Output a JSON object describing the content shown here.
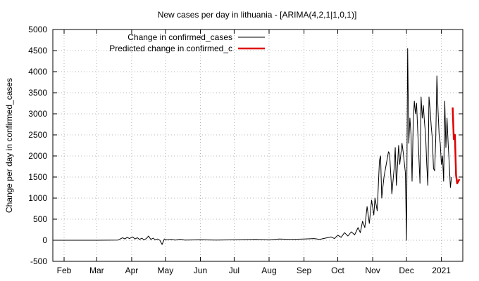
{
  "colors": {
    "observed": "#000000",
    "predicted": "#e00000",
    "grid": "#a0a0a0"
  },
  "chart_data": {
    "type": "line",
    "title": "New cases per day in lithuania -  [ARIMA(4,2,1|1,0,1)]",
    "xlabel": "",
    "ylabel": "Change per day in confirmed_cases",
    "ylim": [
      -500,
      5000
    ],
    "yticks": [
      -500,
      0,
      500,
      1000,
      1500,
      2000,
      2500,
      3000,
      3500,
      4000,
      4500,
      5000
    ],
    "xticks": [
      {
        "label": "Feb",
        "date": "2020-02-01"
      },
      {
        "label": "Mar",
        "date": "2020-03-01"
      },
      {
        "label": "Apr",
        "date": "2020-04-01"
      },
      {
        "label": "May",
        "date": "2020-05-01"
      },
      {
        "label": "Jun",
        "date": "2020-06-01"
      },
      {
        "label": "Jul",
        "date": "2020-07-01"
      },
      {
        "label": "Aug",
        "date": "2020-08-01"
      },
      {
        "label": "Sep",
        "date": "2020-09-01"
      },
      {
        "label": "Oct",
        "date": "2020-10-01"
      },
      {
        "label": "Nov",
        "date": "2020-11-01"
      },
      {
        "label": "Dec",
        "date": "2020-12-01"
      },
      {
        "label": "2021",
        "date": "2021-01-01"
      }
    ],
    "xlim": [
      "2020-01-22",
      "2021-01-20"
    ],
    "grid": true,
    "legend_position": "top-left",
    "series": [
      {
        "name": "Change in confirmed_cases",
        "color": "#000000",
        "points": [
          [
            "2020-01-22",
            0
          ],
          [
            "2020-03-01",
            0
          ],
          [
            "2020-03-20",
            5
          ],
          [
            "2020-03-24",
            60
          ],
          [
            "2020-03-26",
            30
          ],
          [
            "2020-03-28",
            70
          ],
          [
            "2020-03-30",
            40
          ],
          [
            "2020-04-02",
            80
          ],
          [
            "2020-04-04",
            30
          ],
          [
            "2020-04-06",
            60
          ],
          [
            "2020-04-08",
            20
          ],
          [
            "2020-04-10",
            50
          ],
          [
            "2020-04-12",
            10
          ],
          [
            "2020-04-14",
            40
          ],
          [
            "2020-04-16",
            100
          ],
          [
            "2020-04-18",
            20
          ],
          [
            "2020-04-20",
            50
          ],
          [
            "2020-04-22",
            10
          ],
          [
            "2020-04-24",
            30
          ],
          [
            "2020-04-26",
            0
          ],
          [
            "2020-04-28",
            -100
          ],
          [
            "2020-04-30",
            30
          ],
          [
            "2020-05-02",
            10
          ],
          [
            "2020-05-06",
            20
          ],
          [
            "2020-05-10",
            5
          ],
          [
            "2020-05-14",
            25
          ],
          [
            "2020-05-18",
            5
          ],
          [
            "2020-06-01",
            10
          ],
          [
            "2020-06-15",
            5
          ],
          [
            "2020-07-01",
            10
          ],
          [
            "2020-07-20",
            20
          ],
          [
            "2020-08-01",
            10
          ],
          [
            "2020-08-10",
            30
          ],
          [
            "2020-08-20",
            20
          ],
          [
            "2020-09-01",
            30
          ],
          [
            "2020-09-10",
            40
          ],
          [
            "2020-09-15",
            20
          ],
          [
            "2020-09-20",
            50
          ],
          [
            "2020-09-25",
            80
          ],
          [
            "2020-09-28",
            40
          ],
          [
            "2020-10-01",
            120
          ],
          [
            "2020-10-04",
            70
          ],
          [
            "2020-10-07",
            180
          ],
          [
            "2020-10-10",
            100
          ],
          [
            "2020-10-13",
            200
          ],
          [
            "2020-10-16",
            130
          ],
          [
            "2020-10-19",
            300
          ],
          [
            "2020-10-21",
            180
          ],
          [
            "2020-10-23",
            450
          ],
          [
            "2020-10-25",
            300
          ],
          [
            "2020-10-27",
            800
          ],
          [
            "2020-10-29",
            400
          ],
          [
            "2020-10-31",
            950
          ],
          [
            "2020-11-02",
            600
          ],
          [
            "2020-11-03",
            1000
          ],
          [
            "2020-11-05",
            700
          ],
          [
            "2020-11-07",
            1900
          ],
          [
            "2020-11-08",
            2000
          ],
          [
            "2020-11-09",
            1000
          ],
          [
            "2020-11-11",
            1500
          ],
          [
            "2020-11-13",
            1800
          ],
          [
            "2020-11-15",
            2100
          ],
          [
            "2020-11-16",
            2050
          ],
          [
            "2020-11-18",
            1100
          ],
          [
            "2020-11-20",
            1700
          ],
          [
            "2020-11-21",
            2200
          ],
          [
            "2020-11-22",
            1300
          ],
          [
            "2020-11-24",
            2250
          ],
          [
            "2020-11-25",
            1800
          ],
          [
            "2020-11-27",
            2300
          ],
          [
            "2020-11-28",
            2100
          ],
          [
            "2020-11-30",
            1600
          ],
          [
            "2020-12-01",
            0
          ],
          [
            "2020-12-02",
            4550
          ],
          [
            "2020-12-03",
            2300
          ],
          [
            "2020-12-04",
            2900
          ],
          [
            "2020-12-05",
            2500
          ],
          [
            "2020-12-06",
            1400
          ],
          [
            "2020-12-07",
            2800
          ],
          [
            "2020-12-08",
            3300
          ],
          [
            "2020-12-09",
            3000
          ],
          [
            "2020-12-10",
            3250
          ],
          [
            "2020-12-11",
            2600
          ],
          [
            "2020-12-12",
            2000
          ],
          [
            "2020-12-13",
            1350
          ],
          [
            "2020-12-14",
            3400
          ],
          [
            "2020-12-15",
            2900
          ],
          [
            "2020-12-16",
            3200
          ],
          [
            "2020-12-17",
            2800
          ],
          [
            "2020-12-18",
            2500
          ],
          [
            "2020-12-19",
            1800
          ],
          [
            "2020-12-20",
            1300
          ],
          [
            "2020-12-21",
            3400
          ],
          [
            "2020-12-22",
            3100
          ],
          [
            "2020-12-23",
            2700
          ],
          [
            "2020-12-24",
            2400
          ],
          [
            "2020-12-25",
            1700
          ],
          [
            "2020-12-26",
            1650
          ],
          [
            "2020-12-27",
            2400
          ],
          [
            "2020-12-28",
            3900
          ],
          [
            "2020-12-29",
            3100
          ],
          [
            "2020-12-30",
            2500
          ],
          [
            "2020-12-31",
            2300
          ],
          [
            "2021-01-01",
            1800
          ],
          [
            "2021-01-02",
            2000
          ],
          [
            "2021-01-03",
            1400
          ],
          [
            "2021-01-04",
            3300
          ],
          [
            "2021-01-05",
            2200
          ],
          [
            "2021-01-06",
            2900
          ],
          [
            "2021-01-07",
            2300
          ],
          [
            "2021-01-08",
            1800
          ],
          [
            "2021-01-09",
            1250
          ],
          [
            "2021-01-10",
            1500
          ]
        ]
      },
      {
        "name": "Predicted change in confirmed_c",
        "color": "#e00000",
        "points": [
          [
            "2021-01-11",
            3150
          ],
          [
            "2021-01-12",
            2400
          ],
          [
            "2021-01-13",
            2500
          ],
          [
            "2021-01-14",
            1550
          ],
          [
            "2021-01-15",
            1350
          ],
          [
            "2021-01-16",
            1400
          ],
          [
            "2021-01-17",
            1450
          ]
        ]
      }
    ]
  }
}
